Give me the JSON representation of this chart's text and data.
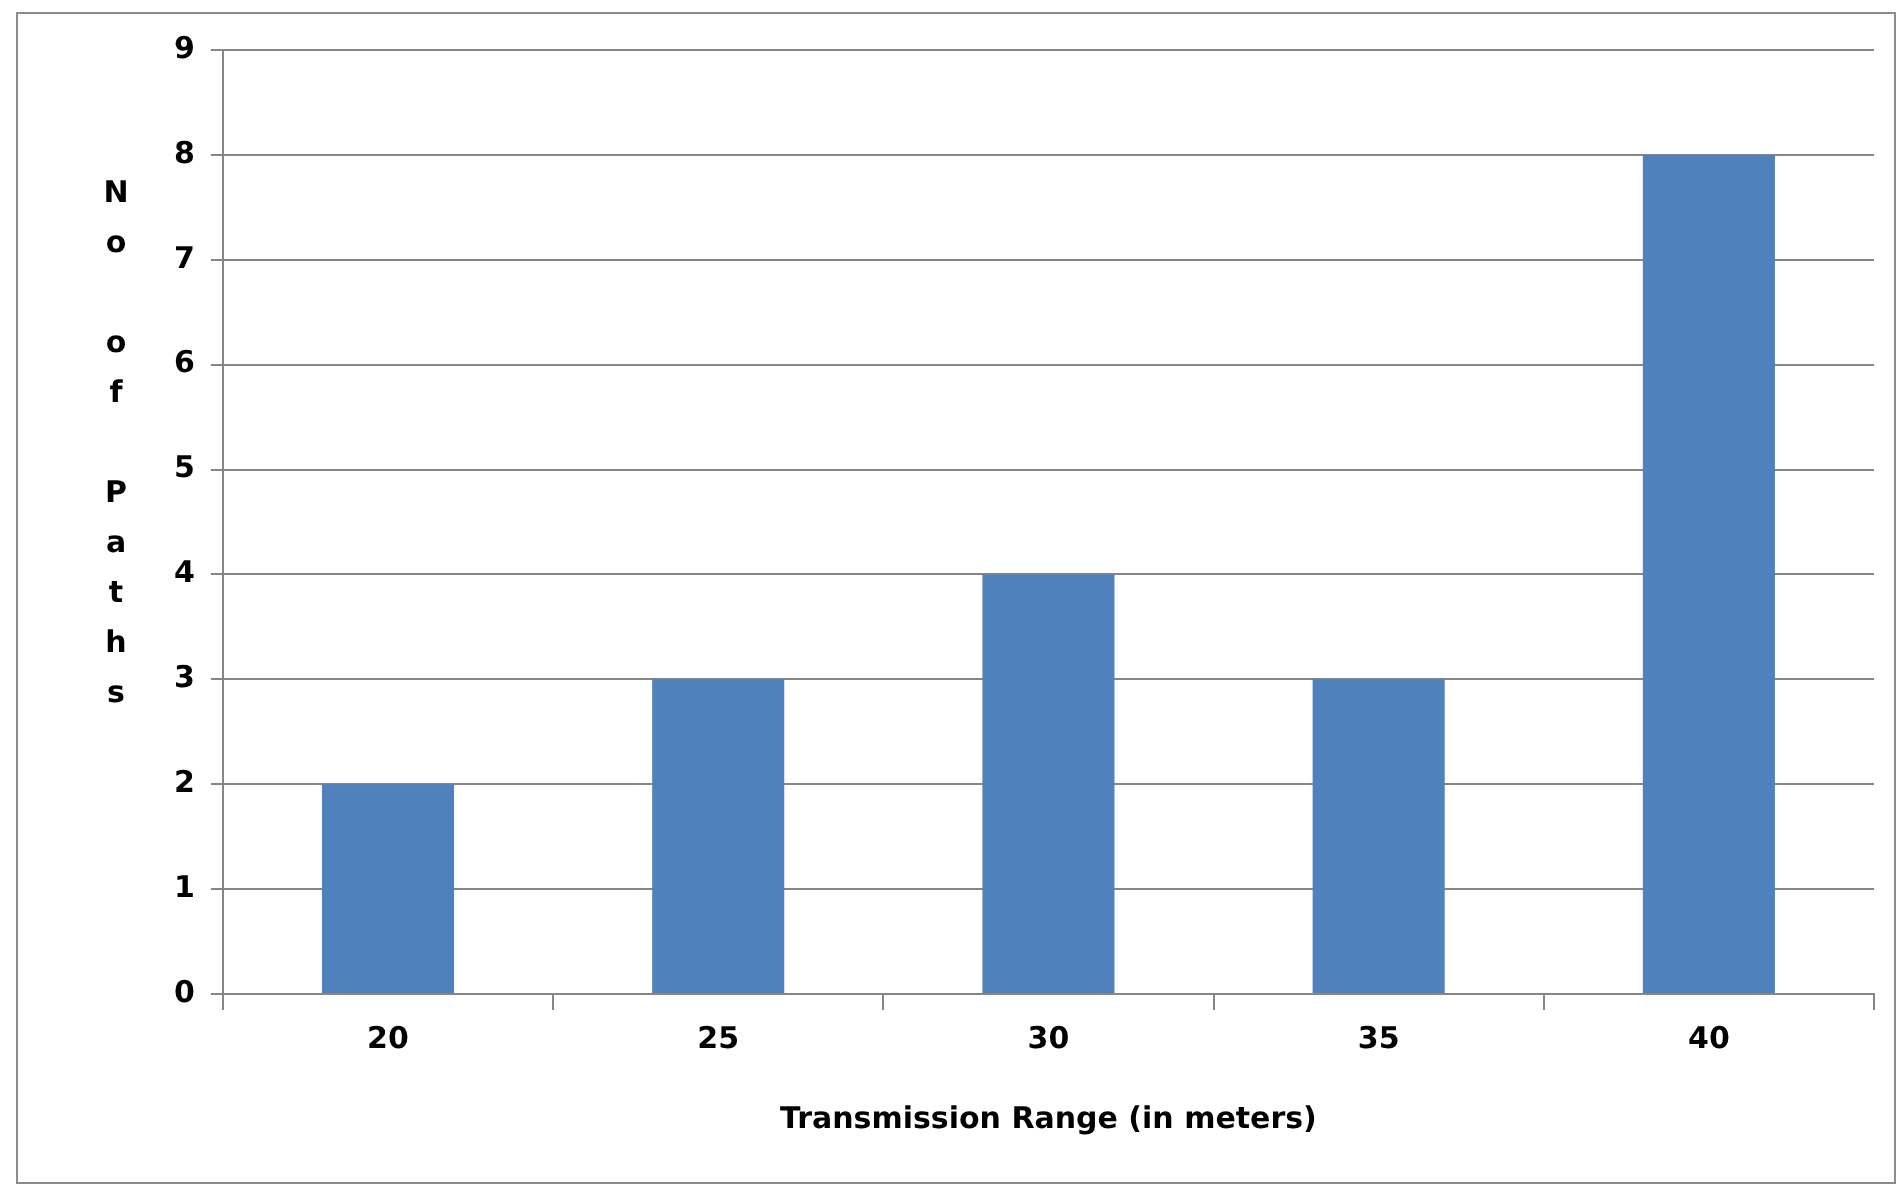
{
  "chart_data": {
    "type": "bar",
    "xlabel": "Transmission Range (in meters)",
    "ylabel": "No of Paths",
    "categories": [
      "20",
      "25",
      "30",
      "35",
      "40"
    ],
    "values": [
      2,
      3,
      4,
      3,
      8
    ],
    "color": "#4f81bd",
    "ylim": [
      0,
      9
    ],
    "yticks": [
      0,
      1,
      2,
      3,
      4,
      5,
      6,
      7,
      8,
      9
    ],
    "grid": "y",
    "legend": false
  }
}
